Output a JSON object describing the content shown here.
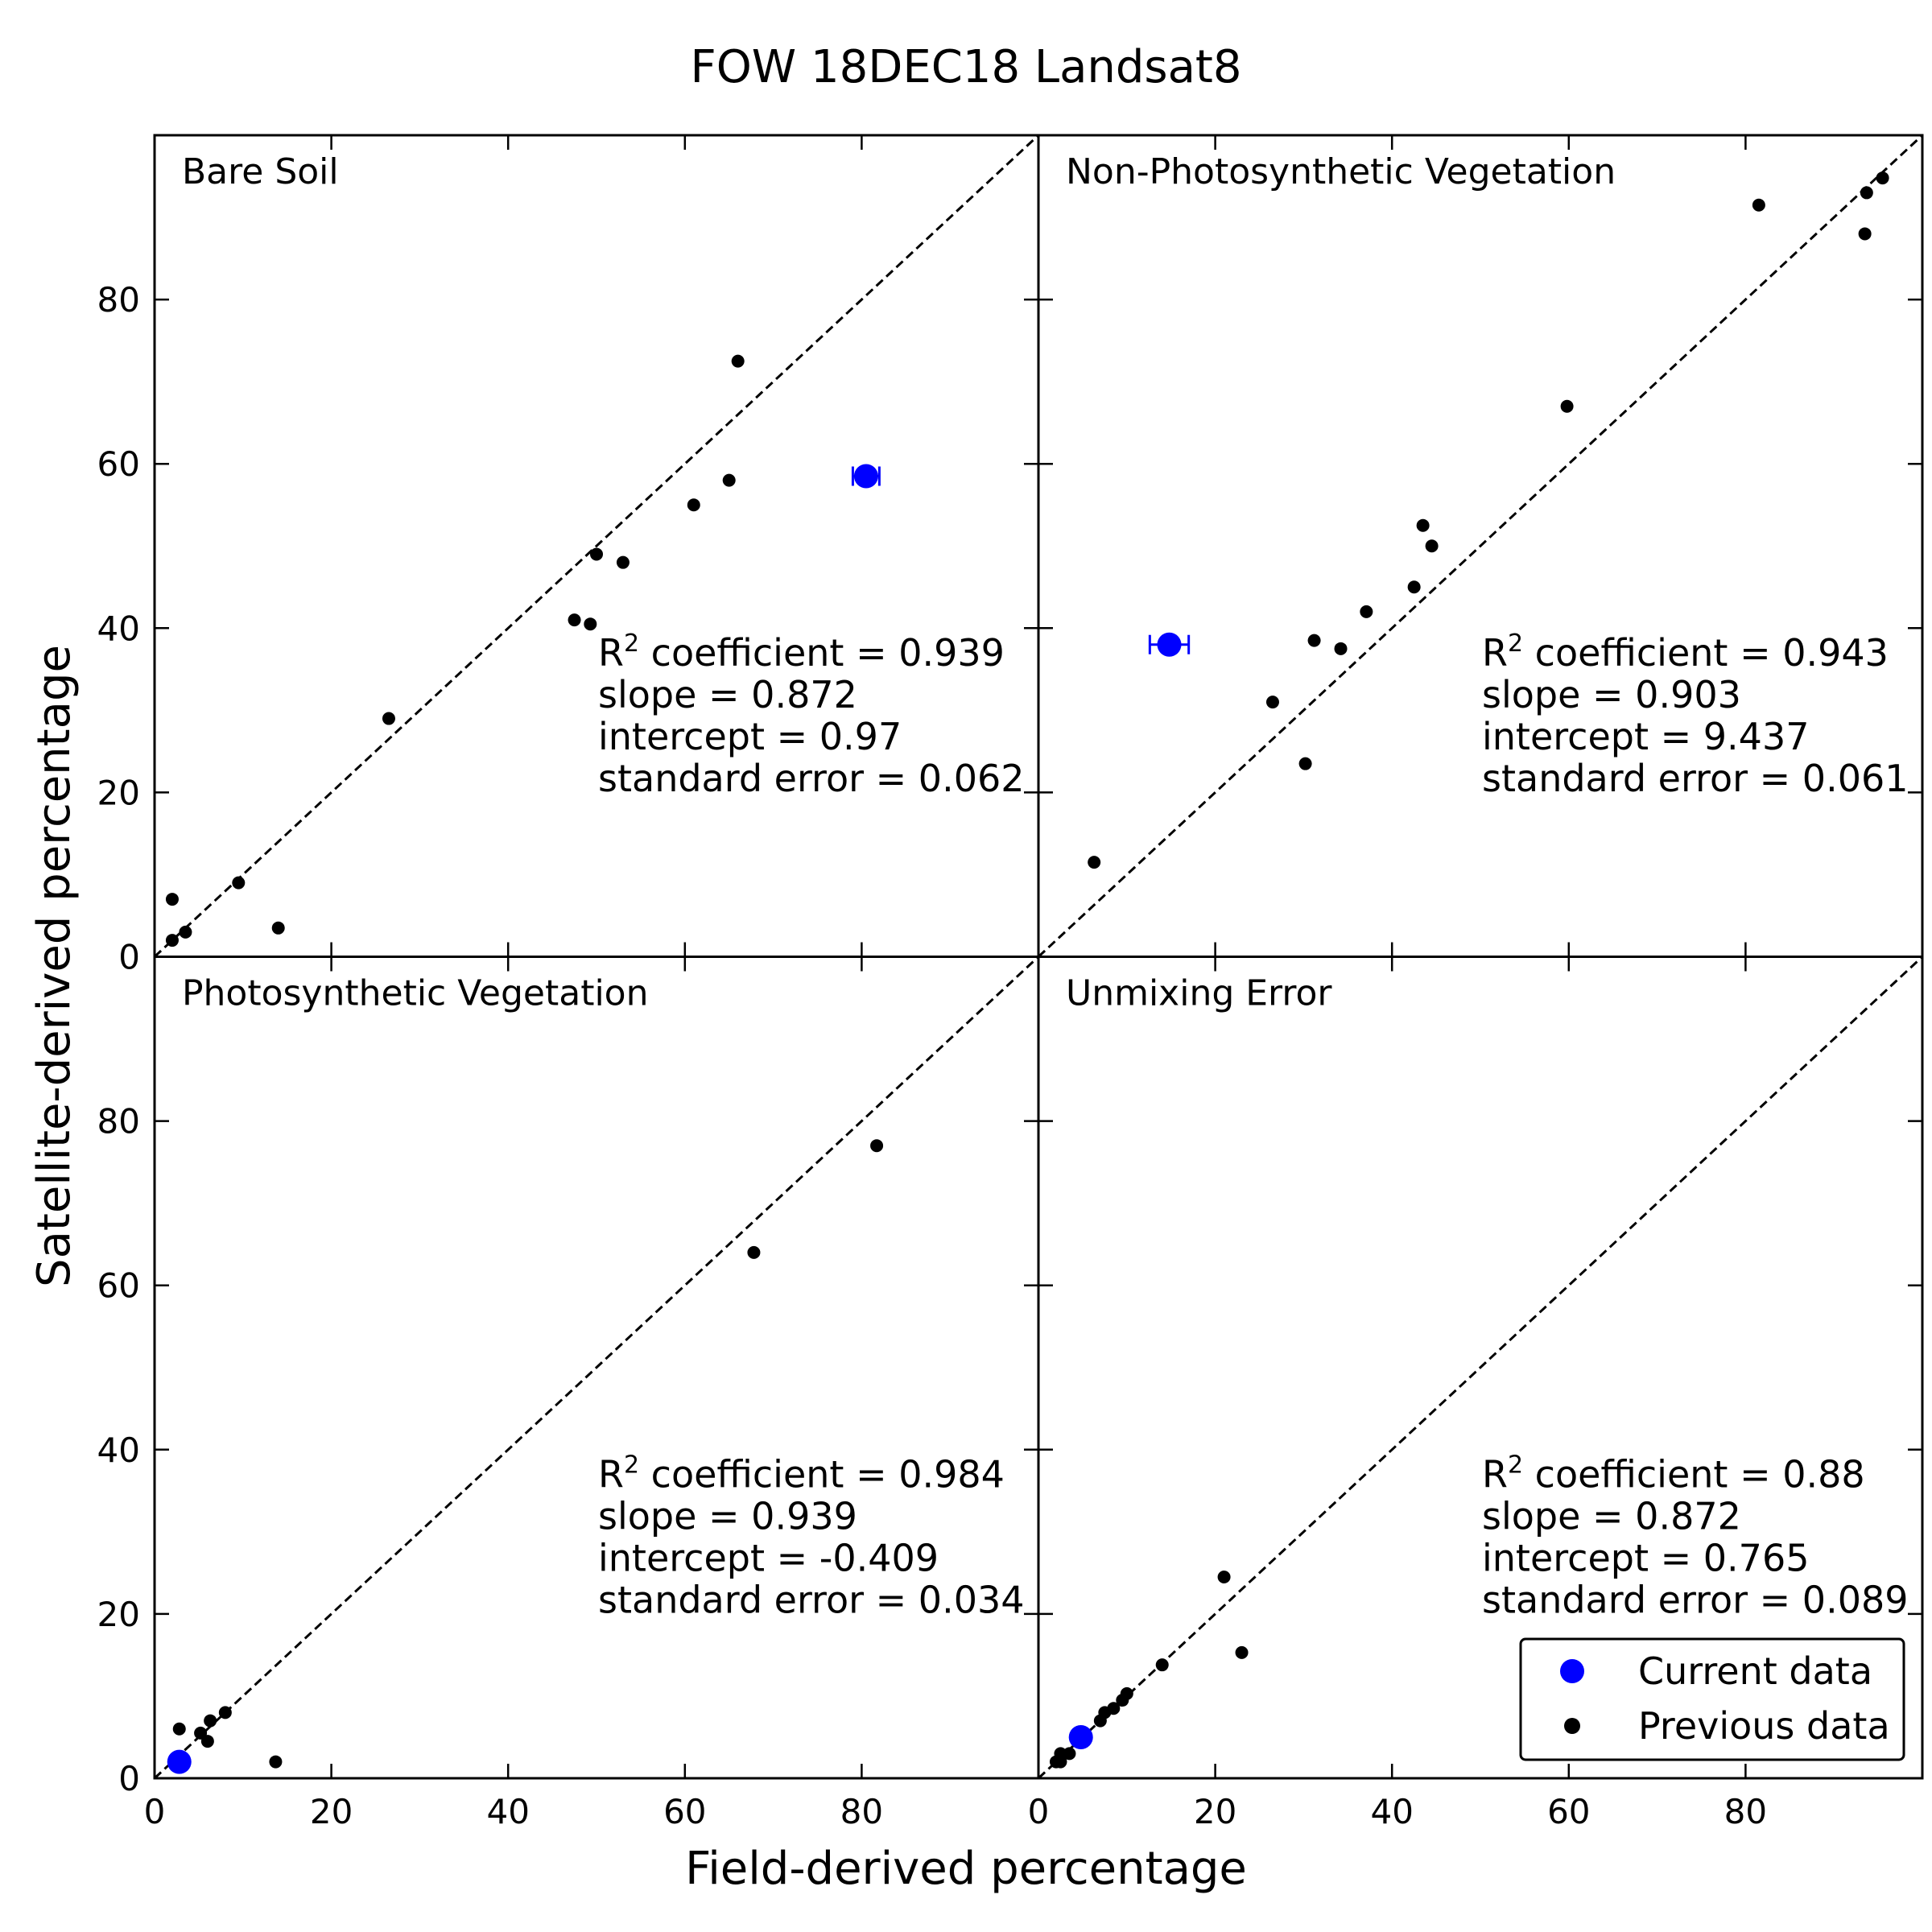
{
  "title": "FOW  18DEC18  Landsat8",
  "xlabel": "Field-derived percentage",
  "ylabel": "Satellite-derived percentage",
  "colors": {
    "current": "#0000ff",
    "previous": "#000000",
    "axes": "#000000"
  },
  "legend": {
    "position": "lower-right",
    "entries": [
      {
        "label": "Current data",
        "color": "#0000ff"
      },
      {
        "label": "Previous data",
        "color": "#000000"
      }
    ]
  },
  "chart_data": [
    {
      "type": "scatter",
      "panel": "Bare Soil",
      "xlim": [
        0,
        100
      ],
      "ylim": [
        0,
        100
      ],
      "xticks": [
        0,
        20,
        40,
        60,
        80
      ],
      "yticks": [
        0,
        20,
        40,
        60,
        80
      ],
      "identity_line": true,
      "stats": {
        "r2_label": "coefficient = 0.939",
        "slope": "slope = 0.872",
        "intercept": "intercept = 0.97",
        "stderr": "standard error = 0.062"
      },
      "previous": [
        [
          2,
          2
        ],
        [
          2,
          7
        ],
        [
          3.5,
          3
        ],
        [
          9.5,
          9
        ],
        [
          14,
          3.5
        ],
        [
          26.5,
          29
        ],
        [
          47.5,
          41
        ],
        [
          49.3,
          40.5
        ],
        [
          50,
          49
        ],
        [
          53,
          48
        ],
        [
          61,
          55
        ],
        [
          65,
          58
        ],
        [
          66,
          72.5
        ]
      ],
      "current": {
        "x": 80.5,
        "y": 58.5,
        "xerr": 1.5
      }
    },
    {
      "type": "scatter",
      "panel": "Non-Photosynthetic Vegetation",
      "xlim": [
        0,
        100
      ],
      "ylim": [
        0,
        100
      ],
      "xticks": [
        0,
        20,
        40,
        60,
        80
      ],
      "yticks": [
        0,
        20,
        40,
        60,
        80
      ],
      "identity_line": true,
      "stats": {
        "r2_label": "coefficient = 0.943",
        "slope": "slope = 0.903",
        "intercept": "intercept = 9.437",
        "stderr": "standard error = 0.061"
      },
      "previous": [
        [
          6.3,
          11.5
        ],
        [
          26.5,
          31
        ],
        [
          30.2,
          23.5
        ],
        [
          31.2,
          38.5
        ],
        [
          34.2,
          37.5
        ],
        [
          37.1,
          42
        ],
        [
          42.5,
          45
        ],
        [
          43.5,
          52.5
        ],
        [
          44.5,
          50
        ],
        [
          59.8,
          67
        ],
        [
          81.5,
          91.5
        ],
        [
          93.5,
          88
        ],
        [
          93.7,
          93
        ],
        [
          95.5,
          94.8
        ]
      ],
      "current": {
        "x": 14.8,
        "y": 38,
        "xerr": 2.2
      }
    },
    {
      "type": "scatter",
      "panel": "Photosynthetic Vegetation",
      "xlim": [
        0,
        100
      ],
      "ylim": [
        0,
        100
      ],
      "xticks": [
        0,
        20,
        40,
        60,
        80
      ],
      "yticks": [
        0,
        20,
        40,
        60,
        80
      ],
      "identity_line": true,
      "stats": {
        "r2_label": "coefficient = 0.984",
        "slope": "slope = 0.939",
        "intercept": "intercept = -0.409",
        "stderr": "standard error = 0.034"
      },
      "previous": [
        [
          2.8,
          6
        ],
        [
          5.2,
          5.5
        ],
        [
          6,
          4.5
        ],
        [
          6.3,
          7
        ],
        [
          8,
          8
        ],
        [
          13.7,
          2
        ],
        [
          67.8,
          64
        ],
        [
          81.7,
          77
        ]
      ],
      "current": {
        "x": 2.8,
        "y": 2,
        "xerr": 0
      }
    },
    {
      "type": "scatter",
      "panel": "Unmixing Error",
      "xlim": [
        0,
        100
      ],
      "ylim": [
        0,
        100
      ],
      "xticks": [
        0,
        20,
        40,
        60,
        80
      ],
      "yticks": [
        0,
        20,
        40,
        60,
        80
      ],
      "identity_line": true,
      "stats": {
        "r2_label": "coefficient = 0.88",
        "slope": "slope = 0.872",
        "intercept": "intercept = 0.765",
        "stderr": "standard error = 0.089"
      },
      "previous": [
        [
          2,
          2
        ],
        [
          2.5,
          2
        ],
        [
          2.5,
          3
        ],
        [
          3.5,
          3
        ],
        [
          7,
          7
        ],
        [
          7.5,
          8
        ],
        [
          8.5,
          8.5
        ],
        [
          9.5,
          9.5
        ],
        [
          10,
          10.3
        ],
        [
          14,
          13.8
        ],
        [
          21,
          24.5
        ],
        [
          23,
          15.3
        ]
      ],
      "current": {
        "x": 4.8,
        "y": 5,
        "xerr": 0
      }
    }
  ]
}
